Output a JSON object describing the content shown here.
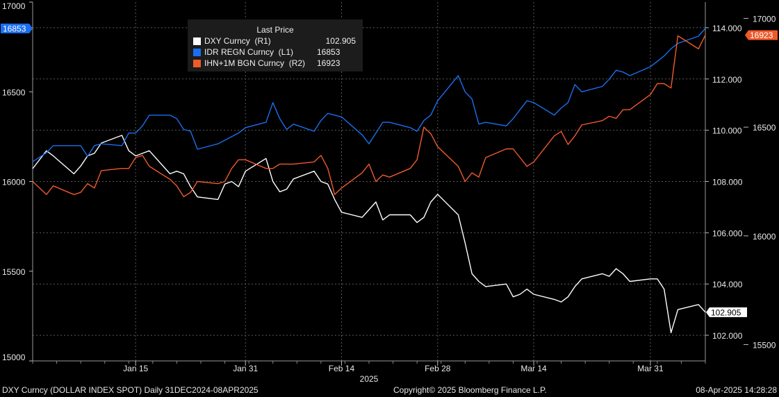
{
  "chart_data": {
    "type": "line",
    "title": "",
    "legend": {
      "title": "Last Price",
      "placement": "top-left",
      "entries": [
        {
          "name": "DXY Curncy  (R1)",
          "value": "102.905",
          "color": "#ffffff"
        },
        {
          "name": "IDR REGN Curncy  (L1)",
          "value": "16853",
          "color": "#1a6ff0"
        },
        {
          "name": "IHN+1M BGN Curncy  (R2)",
          "value": "16923",
          "color": "#f05a2a"
        }
      ]
    },
    "axes": {
      "left": {
        "range": [
          15000,
          17000
        ],
        "ticks": [
          "17000",
          "16500",
          "16000",
          "15500",
          "15000"
        ]
      },
      "right1": {
        "range": [
          101.0,
          115.0
        ],
        "ticks": [
          "114.000",
          "112.000",
          "110.000",
          "108.000",
          "106.000",
          "104.000",
          "102.000"
        ]
      },
      "right2": {
        "range": [
          15425,
          17075
        ],
        "ticks": [
          "17000",
          "16500",
          "16000",
          "15500"
        ]
      }
    },
    "x": {
      "range": [
        "2024-12-31",
        "2025-04-08"
      ],
      "ticks": [
        "Jan 15",
        "Jan 31",
        "Feb 14",
        "Feb 28",
        "Mar 14",
        "Mar 31"
      ],
      "tick_dates": [
        "2025-01-15",
        "2025-01-31",
        "2025-02-14",
        "2025-02-28",
        "2025-03-14",
        "2025-03-31"
      ],
      "year_label": "2025"
    },
    "grid": true,
    "dates": [
      "2024-12-31",
      "2025-01-02",
      "2025-01-03",
      "2025-01-06",
      "2025-01-07",
      "2025-01-08",
      "2025-01-09",
      "2025-01-10",
      "2025-01-13",
      "2025-01-14",
      "2025-01-15",
      "2025-01-16",
      "2025-01-17",
      "2025-01-20",
      "2025-01-21",
      "2025-01-22",
      "2025-01-23",
      "2025-01-24",
      "2025-01-27",
      "2025-01-28",
      "2025-01-29",
      "2025-01-30",
      "2025-01-31",
      "2025-02-03",
      "2025-02-04",
      "2025-02-05",
      "2025-02-06",
      "2025-02-07",
      "2025-02-10",
      "2025-02-11",
      "2025-02-12",
      "2025-02-13",
      "2025-02-14",
      "2025-02-17",
      "2025-02-18",
      "2025-02-19",
      "2025-02-20",
      "2025-02-21",
      "2025-02-24",
      "2025-02-25",
      "2025-02-26",
      "2025-02-27",
      "2025-02-28",
      "2025-03-03",
      "2025-03-04",
      "2025-03-05",
      "2025-03-06",
      "2025-03-07",
      "2025-03-10",
      "2025-03-11",
      "2025-03-12",
      "2025-03-13",
      "2025-03-14",
      "2025-03-17",
      "2025-03-18",
      "2025-03-19",
      "2025-03-20",
      "2025-03-21",
      "2025-03-24",
      "2025-03-25",
      "2025-03-26",
      "2025-03-27",
      "2025-03-28",
      "2025-03-31",
      "2025-04-01",
      "2025-04-02",
      "2025-04-03",
      "2025-04-04",
      "2025-04-07",
      "2025-04-08"
    ],
    "series": [
      {
        "name": "DXY Curncy  (R1)",
        "axis": "right1",
        "color": "#ffffff",
        "last_label": "102.905",
        "label_bg": "#ffffff",
        "label_fg": "#000000",
        "values": [
          108.5,
          109.2,
          109.0,
          108.3,
          108.6,
          109.0,
          109.1,
          109.5,
          109.8,
          109.2,
          109.0,
          109.1,
          109.2,
          108.3,
          108.4,
          108.3,
          107.8,
          107.4,
          107.3,
          107.9,
          108.0,
          107.8,
          108.4,
          108.9,
          108.0,
          107.6,
          107.7,
          108.1,
          108.4,
          108.0,
          107.9,
          107.3,
          106.8,
          106.6,
          106.9,
          107.2,
          106.5,
          106.7,
          106.7,
          106.4,
          106.6,
          107.2,
          107.5,
          106.7,
          105.6,
          104.4,
          104.1,
          103.9,
          104.0,
          103.5,
          103.6,
          103.8,
          103.6,
          103.4,
          103.3,
          103.5,
          103.9,
          104.2,
          104.4,
          104.3,
          104.6,
          104.4,
          104.1,
          104.2,
          104.2,
          103.8,
          102.1,
          103.0,
          103.2,
          102.9
        ]
      },
      {
        "name": "IDR REGN Curncy  (L1)",
        "axis": "left",
        "color": "#1a6ff0",
        "last_label": "16853",
        "label_bg": "#1a6ff0",
        "label_fg": "#ffffff",
        "values": [
          16110,
          16160,
          16200,
          16200,
          16200,
          16140,
          16200,
          16210,
          16200,
          16270,
          16270,
          16310,
          16370,
          16370,
          16350,
          16290,
          16280,
          16180,
          16210,
          16230,
          16250,
          16270,
          16300,
          16330,
          16440,
          16350,
          16290,
          16320,
          16280,
          16340,
          16380,
          16370,
          16360,
          16260,
          16210,
          16270,
          16330,
          16330,
          16300,
          16280,
          16340,
          16370,
          16450,
          16590,
          16500,
          16460,
          16320,
          16330,
          16310,
          16350,
          16400,
          16450,
          16440,
          16370,
          16410,
          16440,
          16540,
          16500,
          16530,
          16570,
          16620,
          16610,
          16590,
          16640,
          16670,
          16700,
          16740,
          16770,
          16810,
          16853
        ]
      },
      {
        "name": "IHN+1M BGN Curncy  (R2)",
        "axis": "right2",
        "color": "#f05a2a",
        "last_label": "16923",
        "label_bg": "#f05a2a",
        "label_fg": "#ffffff",
        "values": [
          16250,
          16190,
          16230,
          16190,
          16200,
          16240,
          16220,
          16300,
          16310,
          16310,
          16360,
          16370,
          16320,
          16260,
          16230,
          16180,
          16200,
          16250,
          16240,
          16250,
          16310,
          16350,
          16350,
          16310,
          16310,
          16330,
          16330,
          16330,
          16340,
          16370,
          16310,
          16190,
          16220,
          16290,
          16330,
          16250,
          16280,
          16270,
          16310,
          16350,
          16500,
          16470,
          16410,
          16320,
          16250,
          16290,
          16270,
          16360,
          16400,
          16400,
          16360,
          16320,
          16340,
          16460,
          16480,
          16420,
          16460,
          16510,
          16530,
          16550,
          16540,
          16580,
          16580,
          16650,
          16700,
          16700,
          16680,
          16920,
          16860,
          16923
        ]
      }
    ]
  },
  "footer": {
    "left": "DXY Curncy (DOLLAR INDEX SPOT)  Daily 31DEC2024-08APR2025",
    "center": "Copyright© 2025 Bloomberg Finance L.P.",
    "right": "08-Apr-2025 14:28:28"
  }
}
